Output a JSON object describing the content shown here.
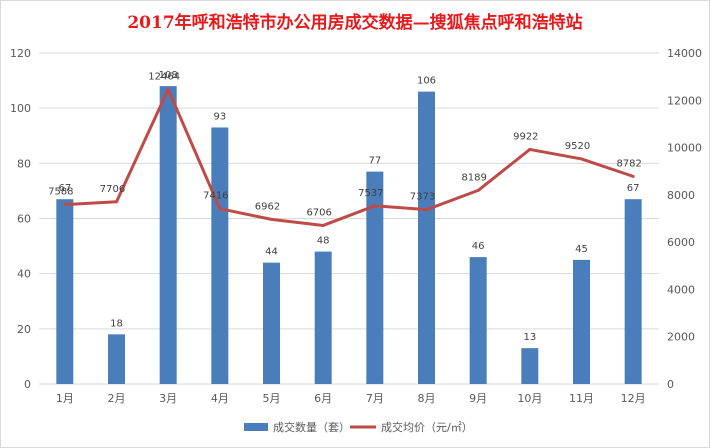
{
  "chart_data": {
    "type": "bar",
    "title": "2017年呼和浩特市办公用房成交数据—搜狐焦点呼和浩特站",
    "categories": [
      "1月",
      "2月",
      "3月",
      "4月",
      "5月",
      "6月",
      "7月",
      "8月",
      "9月",
      "10月",
      "11月",
      "12月"
    ],
    "series": [
      {
        "name": "成交数量（套）",
        "type": "bar",
        "axis": "left",
        "color": "#4a7ebb",
        "values": [
          67,
          18,
          108,
          93,
          44,
          48,
          77,
          106,
          46,
          13,
          45,
          67
        ]
      },
      {
        "name": "成交均价（元/㎡）",
        "type": "line",
        "axis": "right",
        "color": "#be4b48",
        "values": [
          7588,
          7706,
          12464,
          7416,
          6962,
          6706,
          7537,
          7373,
          8189,
          9922,
          9520,
          8782
        ]
      }
    ],
    "y_left": {
      "min": 0,
      "max": 120,
      "step": 20,
      "ticks": [
        "0",
        "20",
        "40",
        "60",
        "80",
        "100",
        "120"
      ]
    },
    "y_right": {
      "min": 0,
      "max": 14000,
      "step": 2000,
      "ticks": [
        "0",
        "2000",
        "4000",
        "6000",
        "8000",
        "10000",
        "12000",
        "14000"
      ]
    },
    "grid": true,
    "legend_position": "bottom",
    "colors": {
      "title": "#e8191b",
      "grid": "#d9d9d9",
      "axis_text": "#595959"
    }
  }
}
